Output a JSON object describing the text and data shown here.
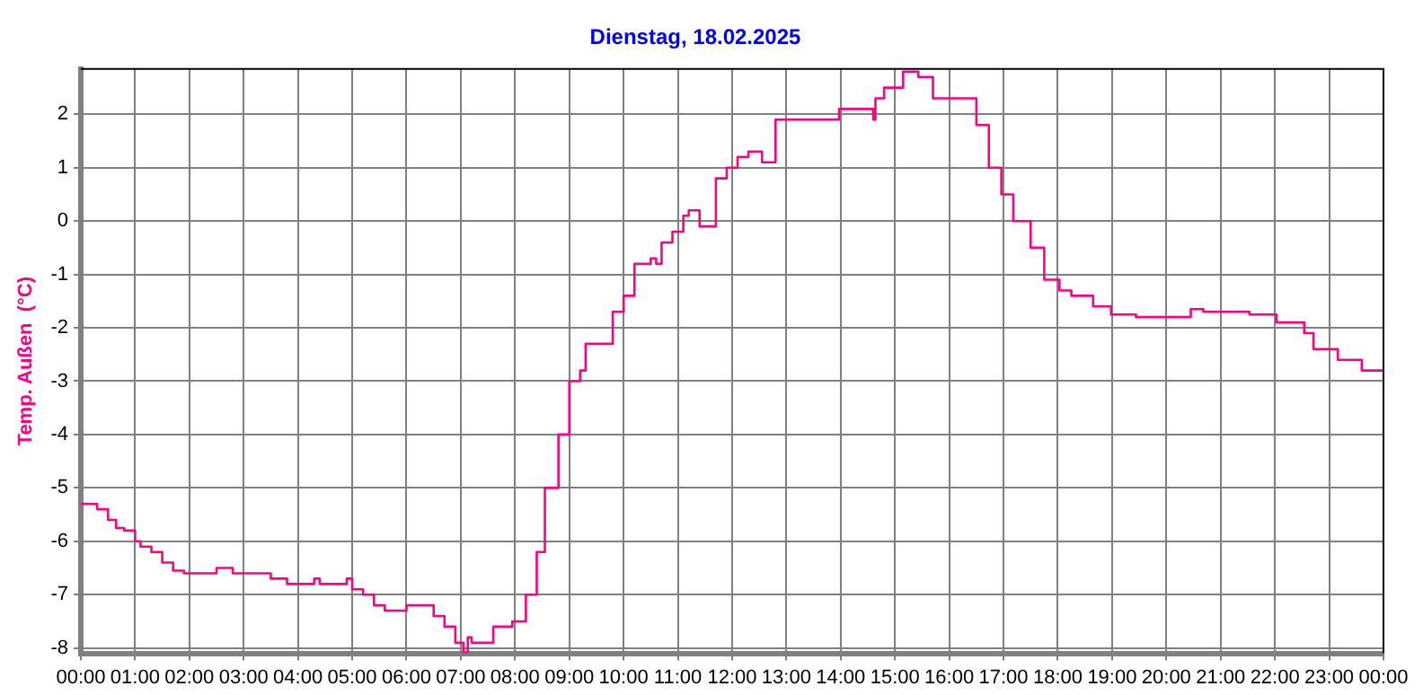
{
  "chart_data": {
    "type": "step",
    "title": "Dienstag, 18.02.2025",
    "ylabel": "Temp. Außen  (°C)",
    "x": [
      0,
      0.3,
      0.5,
      0.65,
      0.8,
      1.0,
      1.1,
      1.3,
      1.5,
      1.7,
      1.9,
      2.0,
      2.5,
      2.8,
      3.0,
      3.5,
      3.8,
      4.0,
      4.3,
      4.4,
      4.6,
      4.9,
      5.0,
      5.2,
      5.4,
      5.6,
      6.0,
      6.1,
      6.5,
      6.7,
      6.9,
      7.05,
      7.13,
      7.2,
      7.6,
      7.95,
      8.05,
      8.2,
      8.4,
      8.55,
      8.8,
      9.0,
      9.2,
      9.3,
      9.6,
      9.8,
      10.0,
      10.2,
      10.5,
      10.6,
      10.7,
      10.9,
      11.1,
      11.2,
      11.4,
      11.7,
      11.9,
      12.1,
      12.3,
      12.55,
      12.8,
      13.05,
      13.57,
      13.97,
      14.1,
      14.6,
      14.64,
      14.8,
      15.15,
      15.43,
      15.7,
      16.0,
      16.5,
      16.73,
      16.96,
      17.18,
      17.5,
      17.75,
      18.03,
      18.25,
      18.65,
      18.98,
      19.44,
      20.0,
      20.45,
      20.68,
      21.0,
      21.53,
      22.03,
      22.54,
      22.71,
      23.16,
      23.6,
      23.95,
      24
    ],
    "series": [
      {
        "color": "#ff0080",
        "values": [
          -5.3,
          -5.3,
          -5.4,
          -5.6,
          -5.75,
          -5.8,
          -6.0,
          -6.1,
          -6.2,
          -6.4,
          -6.55,
          -6.6,
          -6.6,
          -6.5,
          -6.6,
          -6.6,
          -6.7,
          -6.8,
          -6.8,
          -6.7,
          -6.8,
          -6.8,
          -6.7,
          -6.9,
          -7.0,
          -7.2,
          -7.3,
          -7.2,
          -7.2,
          -7.4,
          -7.6,
          -7.9,
          -8.1,
          -7.8,
          -7.9,
          -7.6,
          -7.5,
          -7.5,
          -7.0,
          -6.2,
          -5.0,
          -4.0,
          -3.0,
          -2.8,
          -2.3,
          -2.3,
          -1.7,
          -1.4,
          -0.8,
          -0.7,
          -0.8,
          -0.4,
          -0.2,
          0.1,
          0.2,
          -0.1,
          0.8,
          1.0,
          1.2,
          1.3,
          1.1,
          1.9,
          1.9,
          1.9,
          2.1,
          2.1,
          1.9,
          2.3,
          2.5,
          2.8,
          2.7,
          2.3,
          2.3,
          1.8,
          1.0,
          0.5,
          0.0,
          -0.5,
          -1.1,
          -1.3,
          -1.4,
          -1.6,
          -1.75,
          -1.8,
          -1.8,
          -1.65,
          -1.7,
          -1.7,
          -1.75,
          -1.9,
          -2.1,
          -2.4,
          -2.6,
          -2.8,
          -2.8
        ]
      }
    ],
    "xlim": [
      0,
      24
    ],
    "xticks": [
      {
        "value": 0,
        "label": "00:00"
      },
      {
        "value": 1,
        "label": "01:00"
      },
      {
        "value": 2,
        "label": "02:00"
      },
      {
        "value": 3,
        "label": "03:00"
      },
      {
        "value": 4,
        "label": "04:00"
      },
      {
        "value": 5,
        "label": "05:00"
      },
      {
        "value": 6,
        "label": "06:00"
      },
      {
        "value": 7,
        "label": "07:00"
      },
      {
        "value": 8,
        "label": "08:00"
      },
      {
        "value": 9,
        "label": "09:00"
      },
      {
        "value": 10,
        "label": "10:00"
      },
      {
        "value": 11,
        "label": "11:00"
      },
      {
        "value": 12,
        "label": "12:00"
      },
      {
        "value": 13,
        "label": "13:00"
      },
      {
        "value": 14,
        "label": "14:00"
      },
      {
        "value": 15,
        "label": "15:00"
      },
      {
        "value": 16,
        "label": "16:00"
      },
      {
        "value": 17,
        "label": "17:00"
      },
      {
        "value": 18,
        "label": "18:00"
      },
      {
        "value": 19,
        "label": "19:00"
      },
      {
        "value": 20,
        "label": "20:00"
      },
      {
        "value": 21,
        "label": "21:00"
      },
      {
        "value": 22,
        "label": "22:00"
      },
      {
        "value": 23,
        "label": "23:00"
      },
      {
        "value": 24,
        "label": "00:00"
      }
    ],
    "ylim": [
      -8.1,
      2.85
    ],
    "yticks": [
      -8,
      -7,
      -6,
      -5,
      -4,
      -3,
      -2,
      -1,
      0,
      1,
      2
    ],
    "grid": true,
    "legend": false,
    "marker": "none",
    "line_style": "solid"
  }
}
